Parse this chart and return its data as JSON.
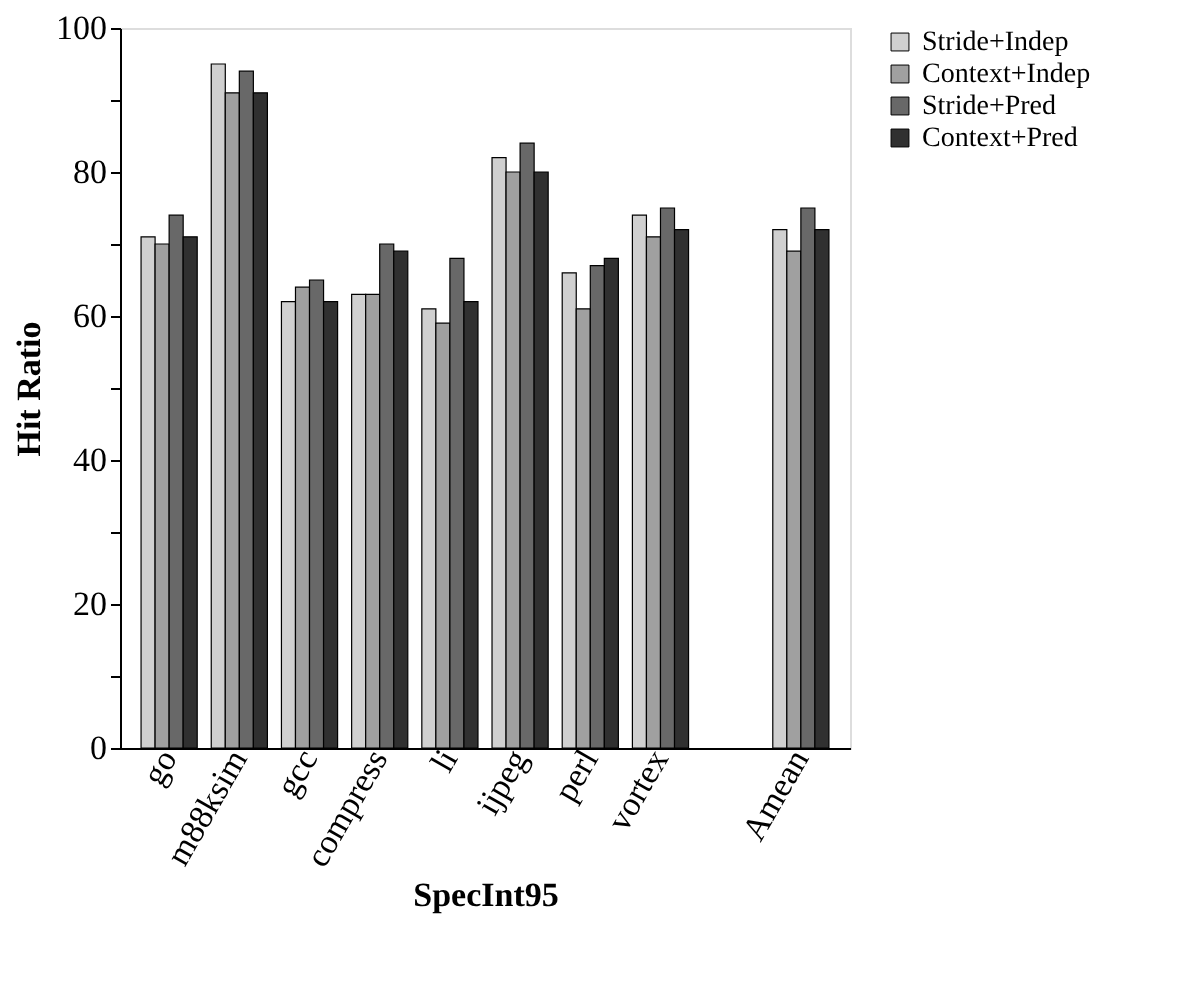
{
  "chart_data": {
    "type": "bar",
    "xlabel": "SpecInt95",
    "ylabel": "Hit Ratio",
    "categories": [
      "go",
      "m88ksim",
      "gcc",
      "compress",
      "li",
      "ijpeg",
      "perl",
      "vortex",
      null,
      "Amean"
    ],
    "series": [
      {
        "name": "Stride+Indep",
        "color": "#d0d0d0",
        "values": [
          71,
          95,
          62,
          63,
          61,
          82,
          66,
          74,
          null,
          72
        ]
      },
      {
        "name": "Context+Indep",
        "color": "#a0a0a0",
        "values": [
          70,
          91,
          64,
          63,
          59,
          80,
          61,
          71,
          null,
          69
        ]
      },
      {
        "name": "Stride+Pred",
        "color": "#686868",
        "values": [
          74,
          94,
          65,
          70,
          68,
          84,
          67,
          75,
          null,
          75
        ]
      },
      {
        "name": "Context+Pred",
        "color": "#303030",
        "values": [
          71,
          91,
          62,
          69,
          62,
          80,
          68,
          72,
          null,
          72
        ]
      }
    ],
    "ylim": [
      0,
      100
    ],
    "yticks": [
      0,
      {
        "value": 10,
        "label": null
      },
      20,
      {
        "value": 30,
        "label": null
      },
      40,
      {
        "value": 50,
        "label": null
      },
      60,
      {
        "value": 70,
        "label": null
      },
      80,
      {
        "value": 90,
        "label": null
      },
      100
    ],
    "grid": false,
    "legend": "right"
  }
}
